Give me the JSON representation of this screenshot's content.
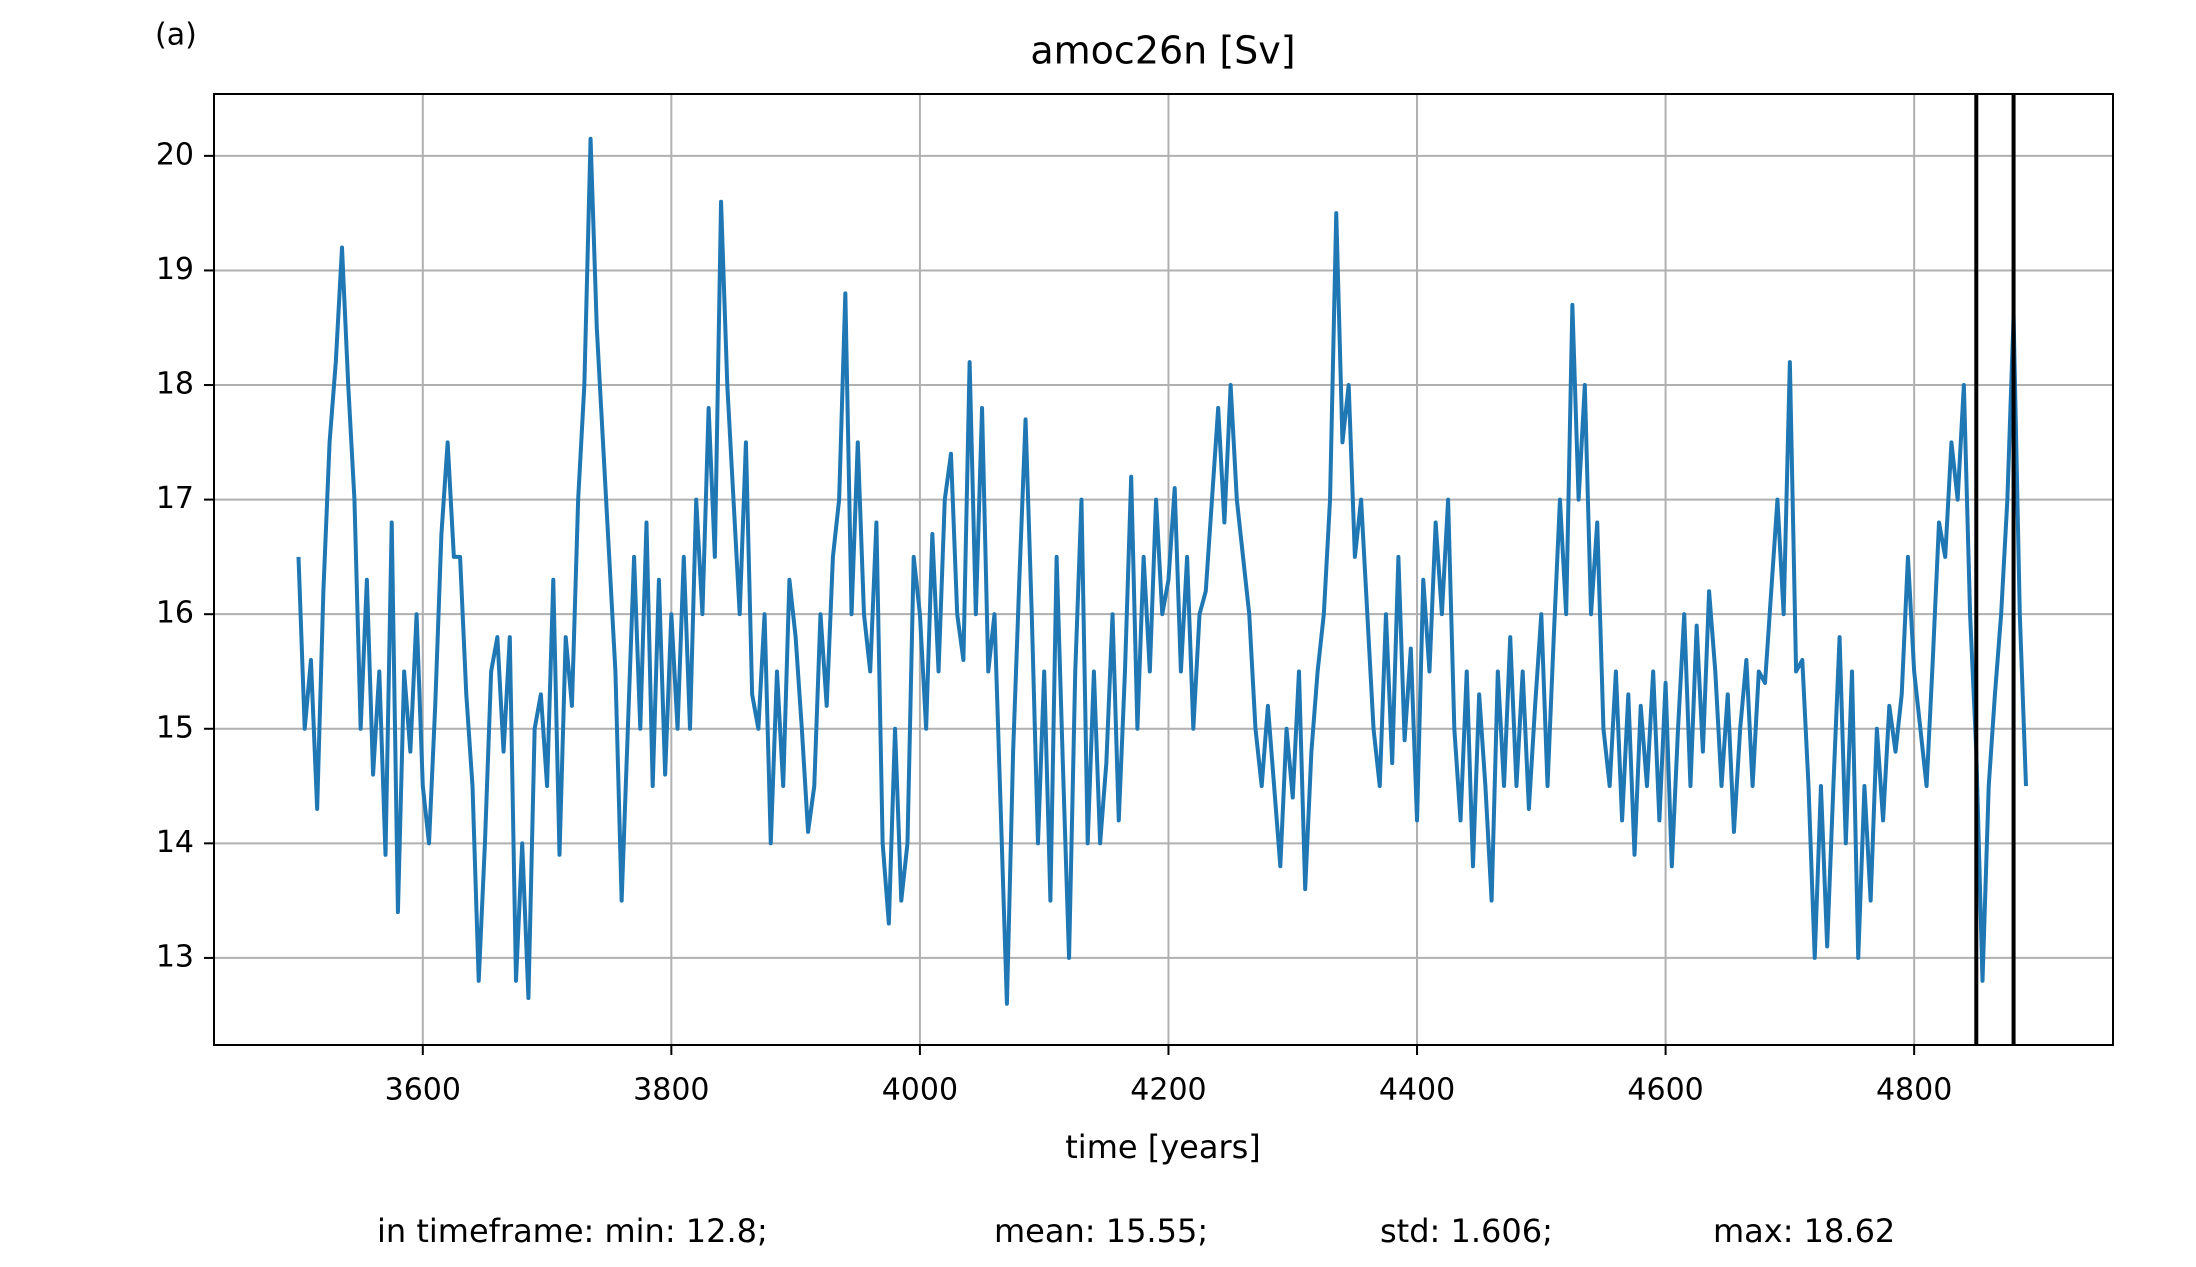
{
  "chart_data": {
    "type": "line",
    "panel_label": "(a)",
    "title": "amoc26n [Sv]",
    "x_label": "time [years]",
    "footer": [
      "in timeframe: min: 12.8;",
      "mean: 15.55;",
      "std: 1.606;",
      "max: 18.62"
    ],
    "color": "#1f77b4",
    "grid": true,
    "vlines": [
      4850,
      4880
    ],
    "vline_color": "#000000",
    "xlim": [
      3432,
      4960
    ],
    "ylim": [
      12.24,
      20.54
    ],
    "xticks": [
      3600,
      3800,
      4000,
      4200,
      4400,
      4600,
      4800
    ],
    "yticks": [
      13,
      14,
      15,
      16,
      17,
      18,
      19,
      20
    ],
    "x": [
      3500,
      3505,
      3510,
      3515,
      3520,
      3525,
      3530,
      3535,
      3540,
      3545,
      3550,
      3555,
      3560,
      3565,
      3570,
      3575,
      3580,
      3585,
      3590,
      3595,
      3600,
      3605,
      3610,
      3615,
      3620,
      3625,
      3630,
      3635,
      3640,
      3645,
      3650,
      3655,
      3660,
      3665,
      3670,
      3675,
      3680,
      3685,
      3690,
      3695,
      3700,
      3705,
      3710,
      3715,
      3720,
      3725,
      3730,
      3735,
      3740,
      3745,
      3750,
      3755,
      3760,
      3765,
      3770,
      3775,
      3780,
      3785,
      3790,
      3795,
      3800,
      3805,
      3810,
      3815,
      3820,
      3825,
      3830,
      3835,
      3840,
      3845,
      3850,
      3855,
      3860,
      3865,
      3870,
      3875,
      3880,
      3885,
      3890,
      3895,
      3900,
      3905,
      3910,
      3915,
      3920,
      3925,
      3930,
      3935,
      3940,
      3945,
      3950,
      3955,
      3960,
      3965,
      3970,
      3975,
      3980,
      3985,
      3990,
      3995,
      4000,
      4005,
      4010,
      4015,
      4020,
      4025,
      4030,
      4035,
      4040,
      4045,
      4050,
      4055,
      4060,
      4065,
      4070,
      4075,
      4080,
      4085,
      4090,
      4095,
      4100,
      4105,
      4110,
      4115,
      4120,
      4125,
      4130,
      4135,
      4140,
      4145,
      4150,
      4155,
      4160,
      4165,
      4170,
      4175,
      4180,
      4185,
      4190,
      4195,
      4200,
      4205,
      4210,
      4215,
      4220,
      4225,
      4230,
      4235,
      4240,
      4245,
      4250,
      4255,
      4260,
      4265,
      4270,
      4275,
      4280,
      4285,
      4290,
      4295,
      4300,
      4305,
      4310,
      4315,
      4320,
      4325,
      4330,
      4335,
      4340,
      4345,
      4350,
      4355,
      4360,
      4365,
      4370,
      4375,
      4380,
      4385,
      4390,
      4395,
      4400,
      4405,
      4410,
      4415,
      4420,
      4425,
      4430,
      4435,
      4440,
      4445,
      4450,
      4455,
      4460,
      4465,
      4470,
      4475,
      4480,
      4485,
      4490,
      4495,
      4500,
      4505,
      4510,
      4515,
      4520,
      4525,
      4530,
      4535,
      4540,
      4545,
      4550,
      4555,
      4560,
      4565,
      4570,
      4575,
      4580,
      4585,
      4590,
      4595,
      4600,
      4605,
      4610,
      4615,
      4620,
      4625,
      4630,
      4635,
      4640,
      4645,
      4650,
      4655,
      4660,
      4665,
      4670,
      4675,
      4680,
      4685,
      4690,
      4695,
      4700,
      4705,
      4710,
      4715,
      4720,
      4725,
      4730,
      4735,
      4740,
      4745,
      4750,
      4755,
      4760,
      4765,
      4770,
      4775,
      4780,
      4785,
      4790,
      4795,
      4800,
      4805,
      4810,
      4815,
      4820,
      4825,
      4830,
      4835,
      4840,
      4845,
      4850,
      4855,
      4860,
      4865,
      4870,
      4875,
      4880,
      4885,
      4890
    ],
    "values": [
      16.5,
      15.0,
      15.6,
      14.3,
      16.2,
      17.5,
      18.2,
      19.2,
      18.0,
      17.0,
      15.0,
      16.3,
      14.6,
      15.5,
      13.9,
      16.8,
      13.4,
      15.5,
      14.8,
      16.0,
      14.5,
      14.0,
      15.2,
      16.7,
      17.5,
      16.5,
      16.5,
      15.3,
      14.5,
      12.8,
      14.0,
      15.5,
      15.8,
      14.8,
      15.8,
      12.8,
      14.0,
      12.65,
      15.0,
      15.3,
      14.5,
      16.3,
      13.9,
      15.8,
      15.2,
      17.0,
      18.0,
      20.15,
      18.5,
      17.5,
      16.5,
      15.5,
      13.5,
      15.0,
      16.5,
      15.0,
      16.8,
      14.5,
      16.3,
      14.6,
      16.0,
      15.0,
      16.5,
      15.0,
      17.0,
      16.0,
      17.8,
      16.5,
      19.6,
      18.0,
      17.0,
      16.0,
      17.5,
      15.3,
      15.0,
      16.0,
      14.0,
      15.5,
      14.5,
      16.3,
      15.8,
      15.0,
      14.1,
      14.5,
      16.0,
      15.2,
      16.5,
      17.0,
      18.8,
      16.0,
      17.5,
      16.0,
      15.5,
      16.8,
      14.0,
      13.3,
      15.0,
      13.5,
      14.0,
      16.5,
      16.0,
      15.0,
      16.7,
      15.5,
      17.0,
      17.4,
      16.0,
      15.6,
      18.2,
      16.0,
      17.8,
      15.5,
      16.0,
      14.3,
      12.6,
      14.8,
      16.3,
      17.7,
      16.0,
      14.0,
      15.5,
      13.5,
      16.5,
      14.7,
      13.0,
      15.5,
      17.0,
      14.0,
      15.5,
      14.0,
      14.7,
      16.0,
      14.2,
      15.5,
      17.2,
      15.0,
      16.5,
      15.5,
      17.0,
      16.0,
      16.3,
      17.1,
      15.5,
      16.5,
      15.0,
      16.0,
      16.2,
      17.0,
      17.8,
      16.8,
      18.0,
      17.0,
      16.5,
      16.0,
      15.0,
      14.5,
      15.2,
      14.5,
      13.8,
      15.0,
      14.4,
      15.5,
      13.6,
      14.8,
      15.5,
      16.0,
      17.0,
      19.5,
      17.5,
      18.0,
      16.5,
      17.0,
      16.0,
      15.0,
      14.5,
      16.0,
      14.7,
      16.5,
      14.9,
      15.7,
      14.2,
      16.3,
      15.5,
      16.8,
      16.0,
      17.0,
      15.0,
      14.2,
      15.5,
      13.8,
      15.3,
      14.5,
      13.5,
      15.5,
      14.5,
      15.8,
      14.5,
      15.5,
      14.3,
      15.2,
      16.0,
      14.5,
      15.8,
      17.0,
      16.0,
      18.7,
      17.0,
      18.0,
      16.0,
      16.8,
      15.0,
      14.5,
      15.5,
      14.2,
      15.3,
      13.9,
      15.2,
      14.5,
      15.5,
      14.2,
      15.4,
      13.8,
      15.0,
      16.0,
      14.5,
      15.9,
      14.8,
      16.2,
      15.5,
      14.5,
      15.3,
      14.1,
      15.0,
      15.6,
      14.5,
      15.5,
      15.4,
      16.2,
      17.0,
      16.0,
      18.2,
      15.5,
      15.6,
      14.5,
      13.0,
      14.5,
      13.1,
      14.5,
      15.8,
      14.0,
      15.5,
      13.0,
      14.5,
      13.5,
      15.0,
      14.2,
      15.2,
      14.8,
      15.3,
      16.5,
      15.5,
      15.0,
      14.5,
      15.6,
      16.8,
      16.5,
      17.5,
      17.0,
      18.0,
      16.0,
      14.8,
      12.8,
      14.5,
      15.3,
      16.0,
      17.0,
      18.6,
      16.0,
      14.5
    ]
  }
}
